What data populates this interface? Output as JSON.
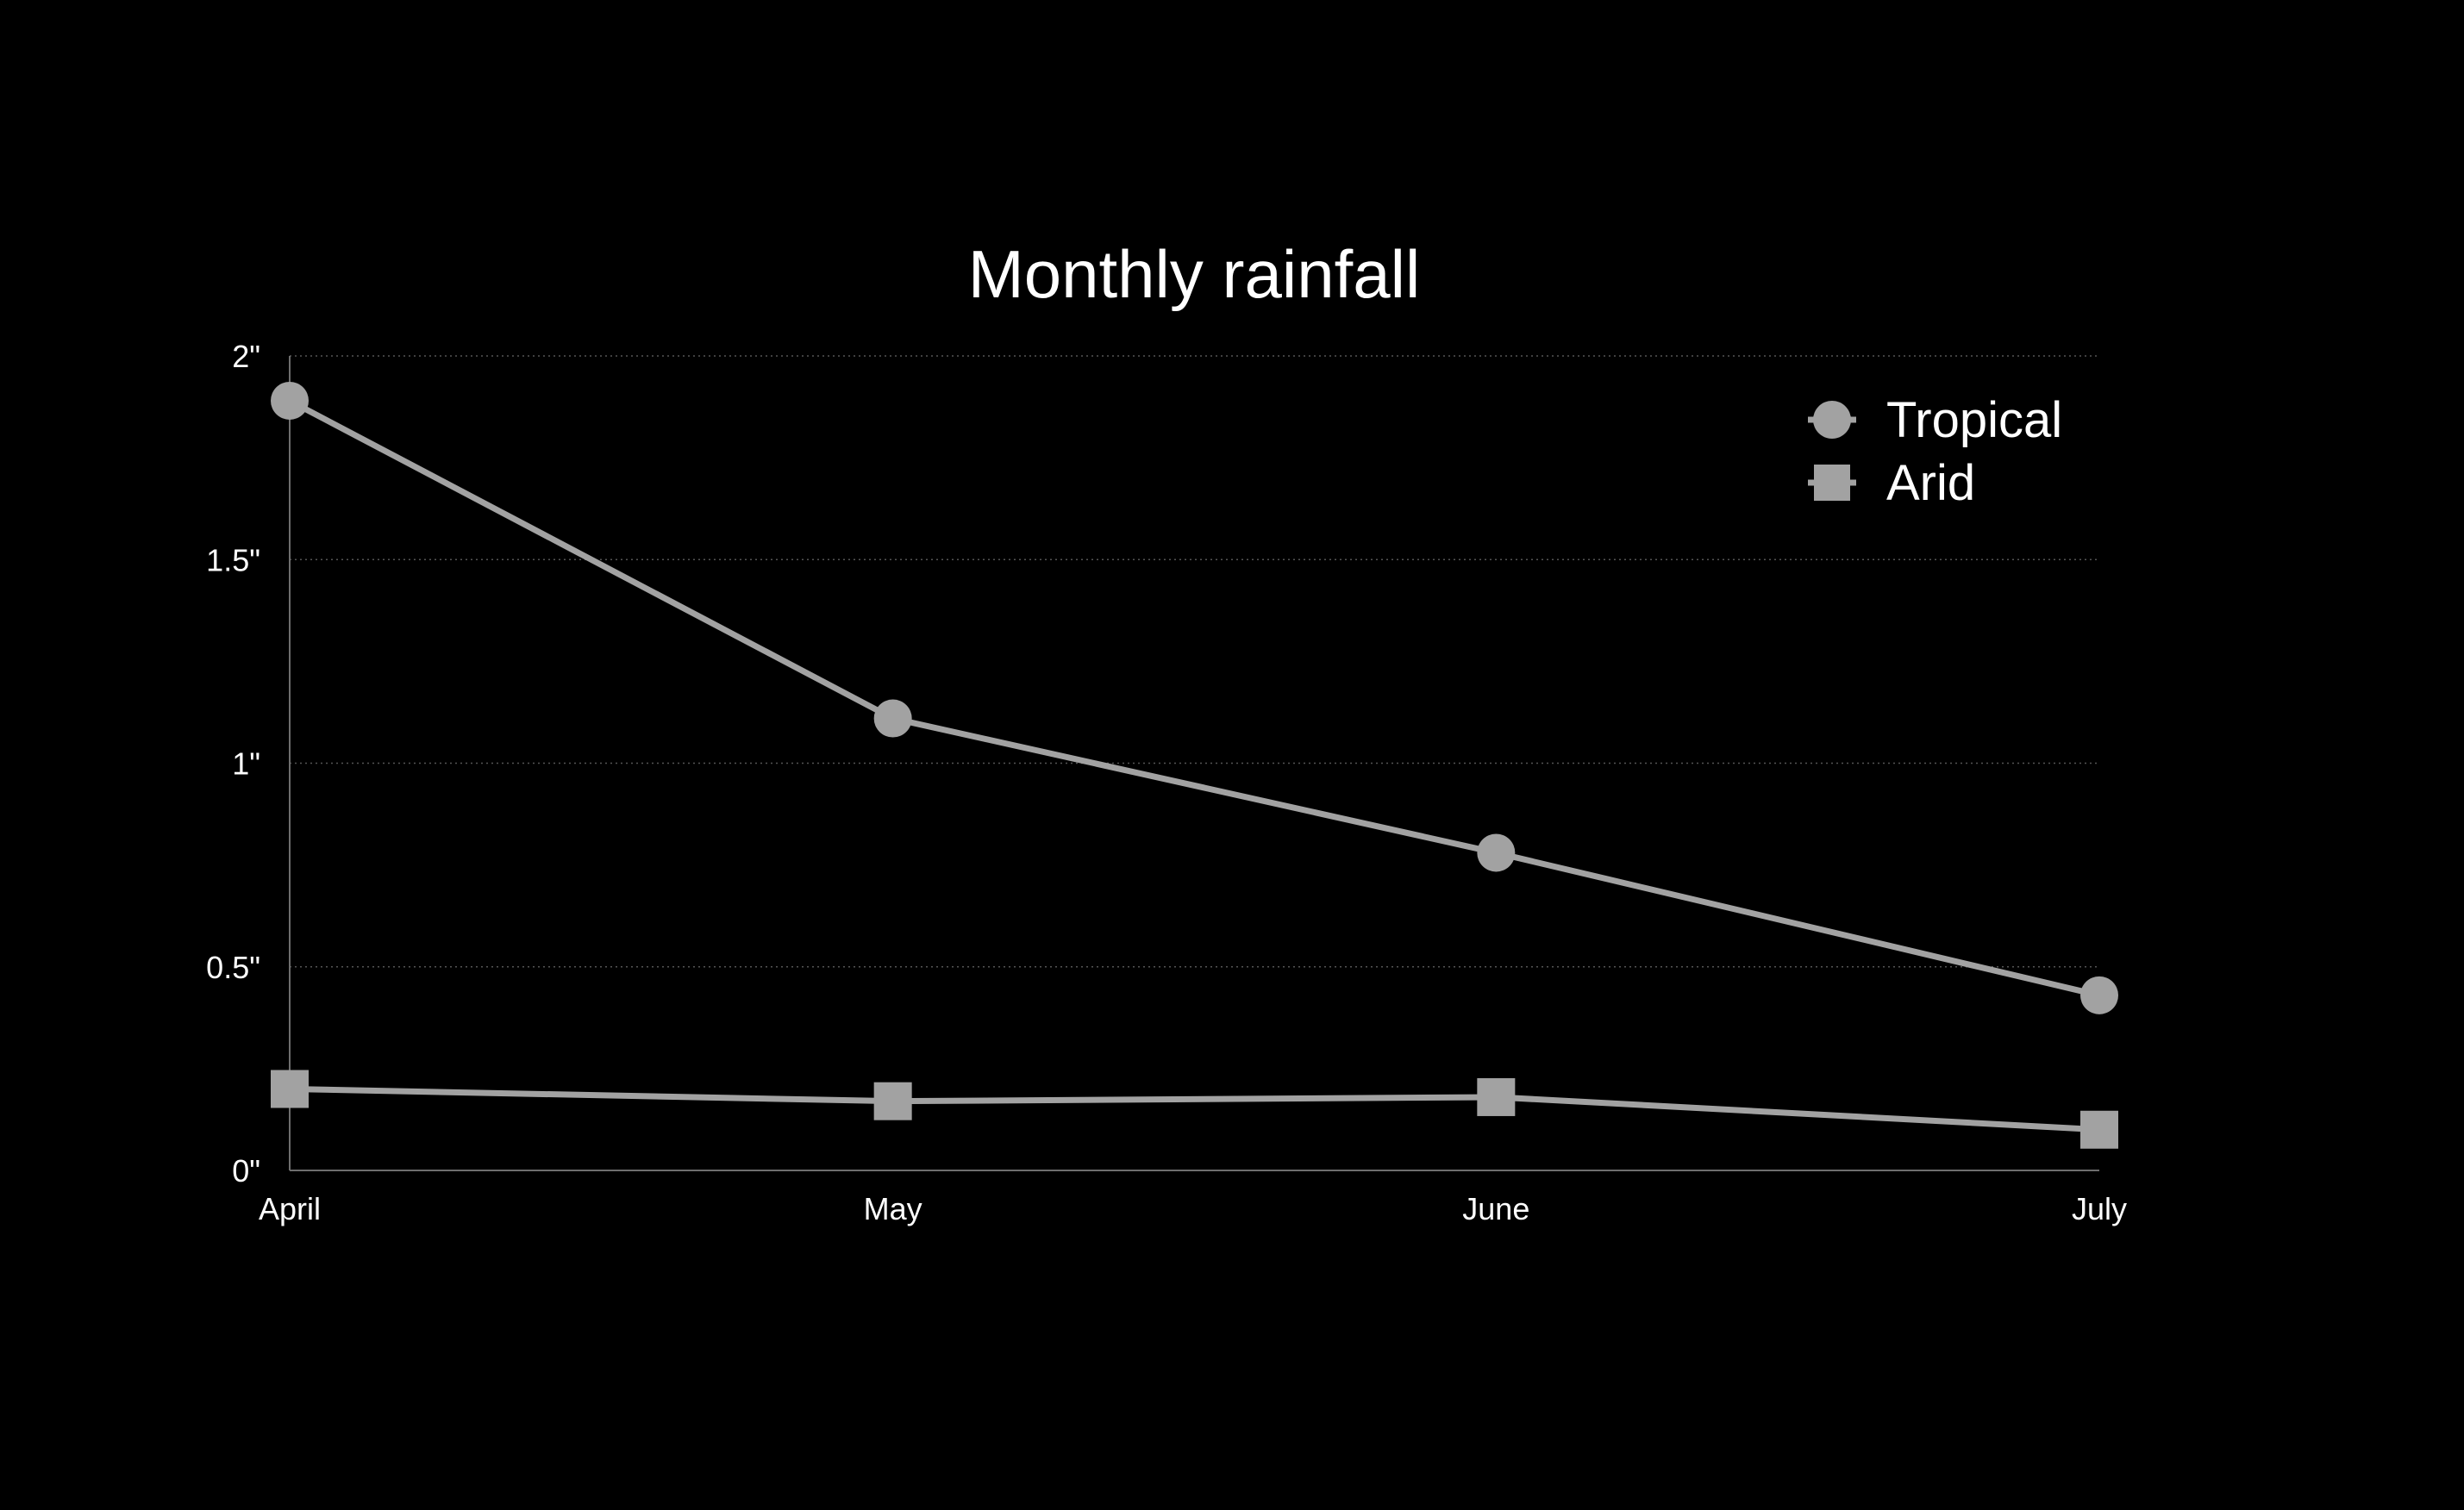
{
  "chart_data": {
    "type": "line",
    "title": "Monthly rainfall",
    "categories": [
      "April",
      "May",
      "June",
      "July"
    ],
    "y_ticks": [
      "0\"",
      "0.5\"",
      "1\"",
      "1.5\"",
      "2\""
    ],
    "y_tick_values": [
      0,
      0.5,
      1,
      1.5,
      2
    ],
    "ylim": [
      0,
      2
    ],
    "grid": true,
    "legend_position": "top-right",
    "series": [
      {
        "name": "Tropical",
        "marker": "circle",
        "values": [
          1.89,
          1.11,
          0.78,
          0.43
        ]
      },
      {
        "name": "Arid",
        "marker": "square",
        "values": [
          0.2,
          0.17,
          0.18,
          0.1
        ]
      }
    ],
    "colors": {
      "background": "#000000",
      "text": "#ffffff",
      "series": "#a2a2a2",
      "axis": "#6e6e6e",
      "grid": "#555555"
    }
  }
}
